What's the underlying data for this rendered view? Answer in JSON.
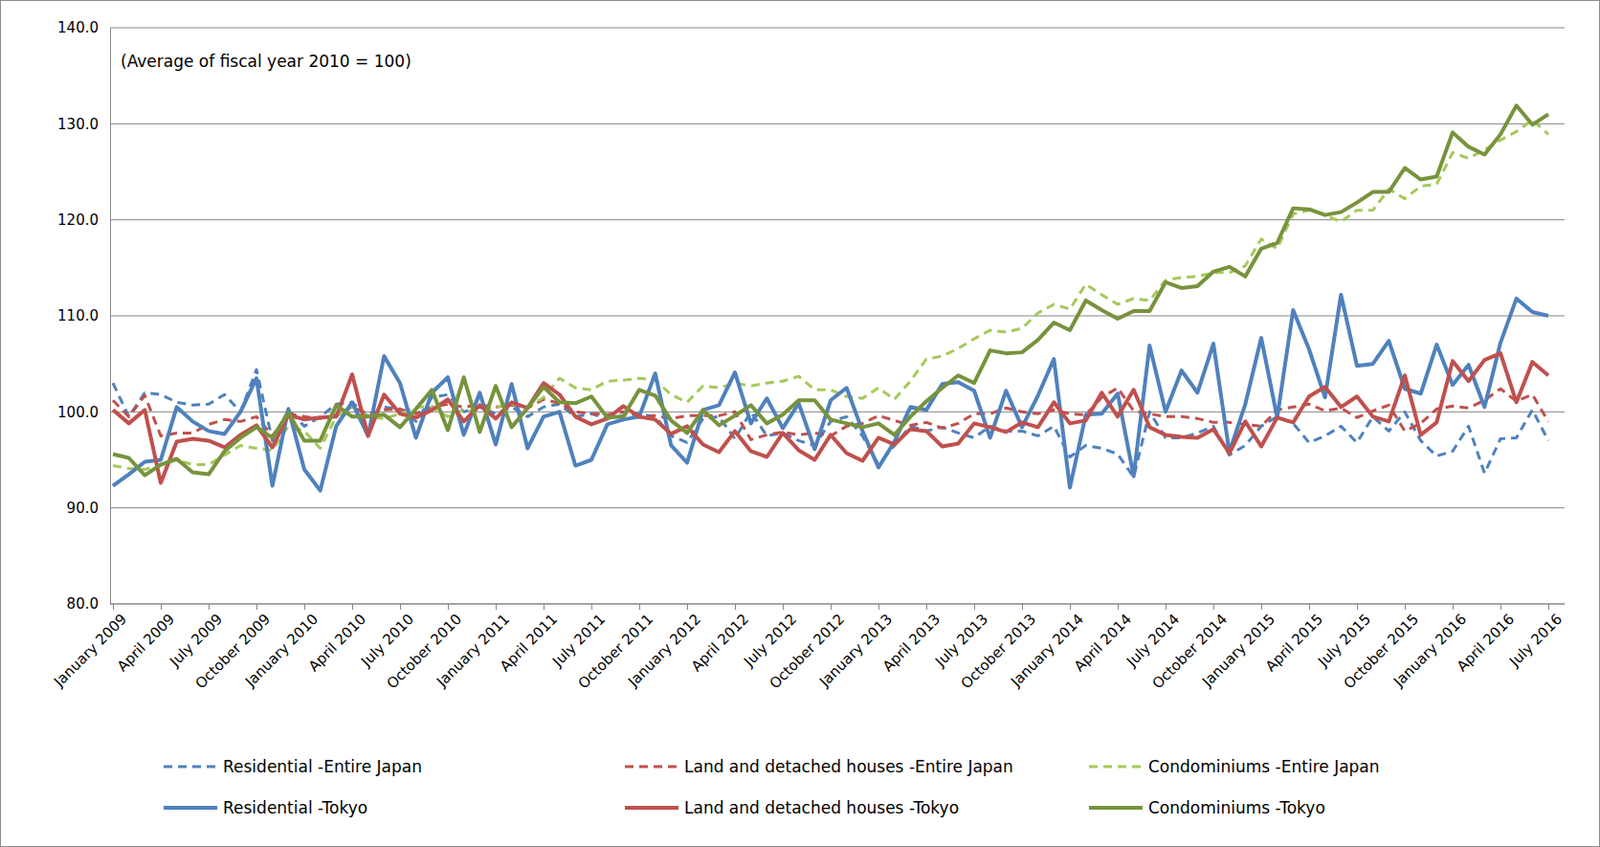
{
  "chart_data": {
    "type": "line",
    "annotation": "(Average of fiscal year 2010 = 100)",
    "categories": [
      "January 2009",
      null,
      null,
      "April 2009",
      null,
      null,
      "July 2009",
      null,
      null,
      "October 2009",
      null,
      null,
      "January 2010",
      null,
      null,
      "April 2010",
      null,
      null,
      "July 2010",
      null,
      null,
      "October 2010",
      null,
      null,
      "January 2011",
      null,
      null,
      "April 2011",
      null,
      null,
      "July 2011",
      null,
      null,
      "October 2011",
      null,
      null,
      "January 2012",
      null,
      null,
      "April 2012",
      null,
      null,
      "July 2012",
      null,
      null,
      "October 2012",
      null,
      null,
      "January 2013",
      null,
      null,
      "April 2013",
      null,
      null,
      "July 2013",
      null,
      null,
      "October 2013",
      null,
      null,
      "January 2014",
      null,
      null,
      "April 2014",
      null,
      null,
      "July 2014",
      null,
      null,
      "October 2014",
      null,
      null,
      "January 2015",
      null,
      null,
      "April 2015",
      null,
      null,
      "July 2015",
      null,
      null,
      "October 2015",
      null,
      null,
      "January 2016",
      null,
      null,
      "April 2016",
      null,
      null,
      "July 2016"
    ],
    "series": [
      {
        "name": "Residential -Entire Japan",
        "color": "#4f81bd",
        "line_style": "dashed",
        "marker": "none",
        "values": [
          103,
          99.5,
          102,
          101.8,
          101,
          100.7,
          100.8,
          101.8,
          100,
          104.4,
          97,
          100.2,
          98.5,
          99.5,
          100.8,
          101,
          99.5,
          100.5,
          100.3,
          99,
          101.5,
          101.8,
          100,
          100.5,
          99.8,
          100.5,
          99.5,
          100.5,
          100.8,
          99.5,
          99.8,
          99.3,
          99.6,
          99.8,
          99.5,
          97.5,
          96.8,
          99.3,
          99.5,
          97.2,
          100,
          97.5,
          97.8,
          97,
          96.5,
          99,
          99.5,
          97.5,
          94.5,
          96.5,
          98.5,
          98,
          98.4,
          97.8,
          97.3,
          98.5,
          98,
          98,
          97.5,
          98.5,
          95.3,
          96.5,
          96.2,
          95.6,
          93.2,
          100,
          97.3,
          97.3,
          97.8,
          98.5,
          95.5,
          96.5,
          98.5,
          99.5,
          98.8,
          96.8,
          97.5,
          98.5,
          96.8,
          99.5,
          98,
          100,
          97,
          95.4,
          95.9,
          98.5,
          93.6,
          97.2,
          97.3,
          100.2,
          97
        ]
      },
      {
        "name": "Land and detached houses -Entire Japan",
        "color": "#c0504d",
        "line_style": "dashed",
        "marker": "none",
        "values": [
          101.2,
          99.5,
          101.7,
          97.5,
          97.8,
          97.8,
          98.7,
          99.2,
          99,
          99.5,
          97.5,
          99.8,
          99.5,
          99.3,
          99.7,
          100.5,
          99.8,
          100.2,
          100.3,
          99.8,
          100.5,
          100.8,
          100.5,
          100.7,
          100.5,
          100.7,
          100.4,
          101.3,
          100.9,
          100,
          99.8,
          99.7,
          100,
          99.4,
          99.6,
          99.3,
          99.6,
          99.6,
          99.6,
          100,
          97.1,
          97.6,
          97.9,
          97.6,
          97.8,
          97.5,
          98.5,
          98.8,
          99.6,
          99.1,
          98.6,
          98.9,
          98.3,
          98.8,
          99.8,
          99.8,
          100.4,
          100,
          99.8,
          100.2,
          99.8,
          99.7,
          101.5,
          102.5,
          100.1,
          99.8,
          99.5,
          99.5,
          99.3,
          98.9,
          98.9,
          98.7,
          98.5,
          100.2,
          100.5,
          100.8,
          100.1,
          100.4,
          99.4,
          100.1,
          100.7,
          98,
          98.8,
          100.3,
          100.6,
          100.4,
          101.2,
          102.4,
          101.1,
          101.8,
          99
        ]
      },
      {
        "name": "Condominiums -Entire Japan",
        "color": "#a5c95a",
        "line_style": "dashed",
        "marker": "none",
        "values": [
          94.4,
          94.1,
          94,
          94.5,
          95,
          94.5,
          94.5,
          95.5,
          96.5,
          96.2,
          96,
          98.5,
          98,
          96.2,
          99.5,
          100.5,
          99.5,
          99.3,
          99.8,
          100.5,
          100.5,
          99.5,
          100.2,
          100,
          100.5,
          100.8,
          100.5,
          101.5,
          103.5,
          102.5,
          102.3,
          103.2,
          103.3,
          103.5,
          103.3,
          101.8,
          101,
          102.7,
          102.5,
          103,
          102.7,
          103,
          103.2,
          103.7,
          102.3,
          102.3,
          101.6,
          101.4,
          102.5,
          101.3,
          103.2,
          105.5,
          105.8,
          106.6,
          107.6,
          108.5,
          108.3,
          108.7,
          110.3,
          111.2,
          110.7,
          113.3,
          112.2,
          111.2,
          111.8,
          111.6,
          113.7,
          114,
          114.1,
          114.5,
          114.5,
          115.2,
          118,
          117,
          120.6,
          121,
          120.5,
          119.8,
          121,
          121,
          123.2,
          122.2,
          123.5,
          123.7,
          127,
          126.4,
          127.3,
          128.3,
          129.2,
          130.4,
          128.9
        ]
      },
      {
        "name": "Residential -Tokyo",
        "color": "#4f81bd",
        "line_style": "solid",
        "marker": "none",
        "values": [
          92.3,
          93.5,
          94.8,
          95,
          100.5,
          99,
          98,
          97.7,
          100,
          103.5,
          92.3,
          100.3,
          94,
          91.8,
          98.5,
          101,
          97.5,
          105.8,
          103,
          97.3,
          102,
          103.6,
          97.6,
          102,
          96.6,
          102.9,
          96.2,
          99.5,
          100,
          94.4,
          95,
          98.7,
          99.2,
          99.5,
          104,
          96.5,
          94.7,
          100.2,
          100.7,
          104.1,
          98.8,
          101.4,
          98.3,
          100.9,
          96.1,
          101.2,
          102.5,
          98,
          94.2,
          96.9,
          100.5,
          100.2,
          102.9,
          103.1,
          102.2,
          97.3,
          102.2,
          98.4,
          101.7,
          105.5,
          92.1,
          99.7,
          99.8,
          101.9,
          93.3,
          106.9,
          100,
          104.3,
          102,
          107.1,
          95.8,
          100.8,
          107.7,
          99.4,
          110.6,
          106.5,
          101.5,
          112.2,
          104.8,
          105,
          107.4,
          102.4,
          101.9,
          107,
          102.8,
          104.9,
          100.5,
          107.2,
          111.8,
          110.4,
          110
        ]
      },
      {
        "name": "Land and detached houses -Tokyo",
        "color": "#c0504d",
        "line_style": "solid",
        "marker": "none",
        "values": [
          100.2,
          98.8,
          100.2,
          92.6,
          96.9,
          97.2,
          97,
          96.3,
          97.6,
          98.6,
          96.3,
          99.7,
          99.2,
          99.4,
          99.5,
          103.9,
          97.5,
          101.8,
          99.8,
          99.4,
          100.2,
          101.3,
          99,
          100.7,
          99.3,
          101,
          100.4,
          103,
          101.8,
          99.5,
          98.7,
          99.3,
          100.6,
          99.5,
          99.2,
          97.7,
          98.5,
          96.6,
          95.8,
          98,
          95.9,
          95.3,
          97.8,
          96,
          95,
          97.6,
          95.7,
          94.9,
          97.3,
          96.6,
          98.2,
          98,
          96.4,
          96.7,
          98.8,
          98.4,
          97.9,
          98.9,
          98.4,
          101,
          98.8,
          99.1,
          102,
          99.5,
          102.3,
          98.4,
          97.6,
          97.4,
          97.3,
          98.2,
          95.7,
          99,
          96.4,
          99.4,
          98.9,
          101.6,
          102.6,
          100.5,
          101.6,
          99.5,
          99,
          103.8,
          97.6,
          98.9,
          105.3,
          103.2,
          105.4,
          106.1,
          101,
          105.2,
          103.8
        ]
      },
      {
        "name": "Condominiums -Tokyo",
        "color": "#77933c",
        "line_style": "solid",
        "marker": "none",
        "values": [
          95.6,
          95.2,
          93.4,
          94.5,
          95.1,
          93.7,
          93.5,
          95.9,
          97.3,
          98.4,
          97.3,
          99.9,
          97,
          97,
          100.7,
          99.5,
          99.5,
          99.7,
          98.4,
          100.3,
          102.3,
          98.1,
          103.6,
          97.9,
          102.7,
          98.4,
          100.4,
          102.6,
          101,
          100.9,
          101.6,
          99.4,
          99.5,
          102.3,
          101.7,
          99.1,
          97.8,
          100.2,
          98.6,
          99.6,
          100.7,
          98.8,
          99.7,
          101.2,
          101.2,
          99.2,
          98.8,
          98.4,
          98.8,
          97.6,
          99.5,
          101.1,
          102.5,
          103.8,
          103,
          106.4,
          106.1,
          106.2,
          107.5,
          109.3,
          108.5,
          111.6,
          110.6,
          109.7,
          110.5,
          110.5,
          113.5,
          112.9,
          113.1,
          114.6,
          115.1,
          114.1,
          117,
          117.6,
          121.2,
          121.1,
          120.5,
          120.8,
          121.8,
          122.9,
          122.9,
          125.4,
          124.2,
          124.5,
          129.1,
          127.6,
          126.8,
          128.9,
          131.9,
          129.9,
          131
        ]
      }
    ],
    "ylim": [
      80,
      140
    ],
    "yticks": [
      {
        "value": 80,
        "label": "80.0"
      },
      {
        "value": 90,
        "label": "90.0"
      },
      {
        "value": 100,
        "label": "100.0"
      },
      {
        "value": 110,
        "label": "110.0"
      },
      {
        "value": 120,
        "label": "120.0"
      },
      {
        "value": 130,
        "label": "130.0"
      },
      {
        "value": 140,
        "label": "140.0"
      }
    ],
    "grid": true,
    "legend": "bottom"
  }
}
